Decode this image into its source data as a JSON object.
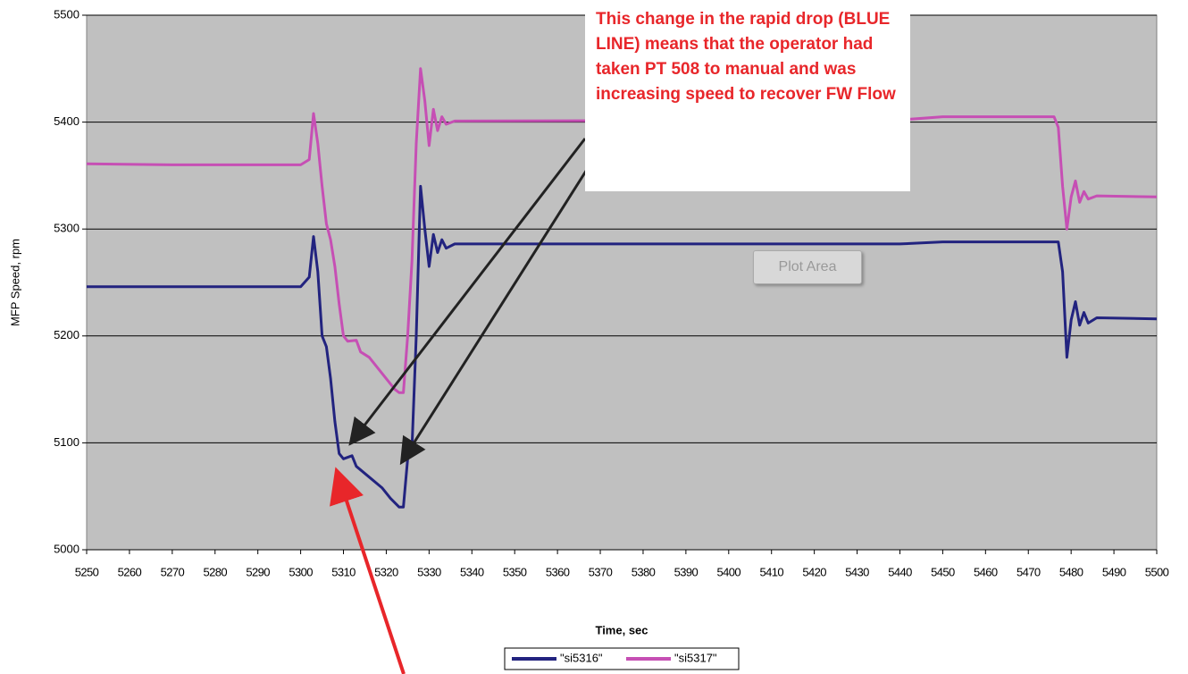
{
  "chart_data": {
    "type": "line",
    "xlabel": "Time, sec",
    "ylabel": "MFP Speed, rpm",
    "xlim": [
      5250,
      5500
    ],
    "xticks": [
      5250,
      5260,
      5270,
      5280,
      5290,
      5300,
      5310,
      5320,
      5330,
      5340,
      5350,
      5360,
      5370,
      5380,
      5390,
      5400,
      5410,
      5420,
      5430,
      5440,
      5450,
      5460,
      5470,
      5480,
      5490,
      5500
    ],
    "ylim": [
      5000,
      5500
    ],
    "yticks": [
      5000,
      5100,
      5200,
      5300,
      5400,
      5500
    ],
    "grid": true,
    "background": "#c0c0c0",
    "legend": "bottom",
    "series": [
      {
        "name": "\"si5316\"",
        "color": "#22237f",
        "x": [
          5250,
          5270,
          5300,
          5302,
          5303,
          5304,
          5305,
          5306,
          5307,
          5308,
          5309,
          5310,
          5312,
          5313,
          5316,
          5319,
          5321,
          5323,
          5324,
          5325,
          5326,
          5327,
          5328,
          5329,
          5330,
          5331,
          5332,
          5333,
          5334,
          5336,
          5440,
          5450,
          5477,
          5478,
          5479,
          5480,
          5481,
          5482,
          5483,
          5484,
          5486,
          5500
        ],
        "values": [
          5246,
          5246,
          5246,
          5255,
          5293,
          5260,
          5200,
          5190,
          5160,
          5120,
          5090,
          5085,
          5088,
          5078,
          5068,
          5058,
          5048,
          5040,
          5040,
          5085,
          5095,
          5200,
          5340,
          5300,
          5265,
          5295,
          5278,
          5290,
          5282,
          5286,
          5286,
          5288,
          5288,
          5260,
          5180,
          5215,
          5232,
          5210,
          5222,
          5212,
          5217,
          5216
        ]
      },
      {
        "name": "\"si5317\"",
        "color": "#c64fb4",
        "x": [
          5250,
          5270,
          5300,
          5302,
          5303,
          5304,
          5305,
          5306,
          5307,
          5308,
          5309,
          5310,
          5311,
          5313,
          5314,
          5316,
          5318,
          5320,
          5322,
          5323,
          5324,
          5325,
          5326,
          5327,
          5328,
          5329,
          5330,
          5331,
          5332,
          5333,
          5334,
          5336,
          5440,
          5450,
          5476,
          5477,
          5478,
          5479,
          5480,
          5481,
          5482,
          5483,
          5484,
          5486,
          5500
        ],
        "values": [
          5361,
          5360,
          5360,
          5365,
          5408,
          5380,
          5340,
          5305,
          5290,
          5265,
          5230,
          5200,
          5195,
          5196,
          5185,
          5180,
          5170,
          5160,
          5150,
          5147,
          5147,
          5200,
          5270,
          5380,
          5450,
          5420,
          5378,
          5412,
          5392,
          5405,
          5398,
          5401,
          5402,
          5405,
          5405,
          5395,
          5340,
          5300,
          5330,
          5345,
          5325,
          5335,
          5328,
          5331,
          5330
        ]
      }
    ],
    "annotations": [
      "This change in the rapid drop (BLUE LINE) means that the operator had taken PT 508  to manual and was increasing speed to recover FW Flow",
      "Plot Area"
    ]
  }
}
